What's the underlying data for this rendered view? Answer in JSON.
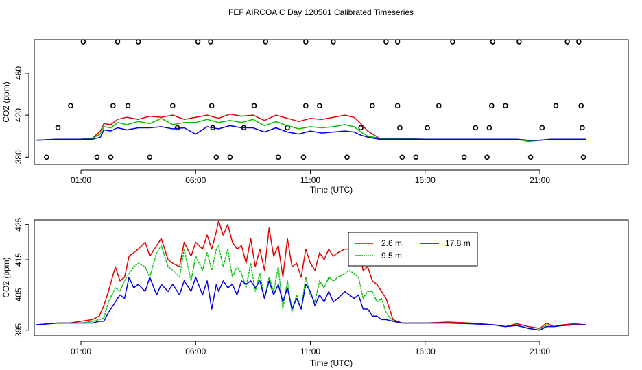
{
  "figure": {
    "title": "FEF AIRCOA C  Day 120501  Calibrated Timeseries"
  },
  "colors": {
    "red": "#e00000",
    "green": "#00c000",
    "blue": "#0000e0",
    "axis": "#000000"
  },
  "chart_data": [
    {
      "type": "scatter",
      "title": "",
      "xlabel": "Time (UTC)",
      "ylabel": "CO2 (ppm)",
      "x_tick_labels": [
        "01:00",
        "06:00",
        "11:00",
        "16:00",
        "21:00"
      ],
      "x_tick_hours": [
        1,
        6,
        11,
        16,
        21
      ],
      "y_ticks": [
        380,
        420,
        460
      ],
      "y_tick_labels": [
        "380",
        "420",
        "460"
      ],
      "xlim": [
        -1,
        24
      ],
      "ylim": [
        373,
        492
      ],
      "circle_points": [
        {
          "x": -0.5,
          "y": 380
        },
        {
          "x": 0.0,
          "y": 408
        },
        {
          "x": 0.55,
          "y": 429
        },
        {
          "x": 1.1,
          "y": 490
        },
        {
          "x": 1.7,
          "y": 380
        },
        {
          "x": 2.3,
          "y": 380
        },
        {
          "x": 2.4,
          "y": 429
        },
        {
          "x": 2.6,
          "y": 490
        },
        {
          "x": 3.05,
          "y": 429
        },
        {
          "x": 3.5,
          "y": 490
        },
        {
          "x": 4.0,
          "y": 380
        },
        {
          "x": 5.0,
          "y": 429
        },
        {
          "x": 5.2,
          "y": 408
        },
        {
          "x": 6.1,
          "y": 490
        },
        {
          "x": 6.65,
          "y": 490
        },
        {
          "x": 6.7,
          "y": 429
        },
        {
          "x": 6.75,
          "y": 408
        },
        {
          "x": 6.9,
          "y": 380
        },
        {
          "x": 7.5,
          "y": 380
        },
        {
          "x": 8.1,
          "y": 408
        },
        {
          "x": 8.55,
          "y": 429
        },
        {
          "x": 9.05,
          "y": 490
        },
        {
          "x": 9.6,
          "y": 380
        },
        {
          "x": 10.0,
          "y": 408
        },
        {
          "x": 10.7,
          "y": 380
        },
        {
          "x": 10.8,
          "y": 490
        },
        {
          "x": 10.8,
          "y": 429
        },
        {
          "x": 11.4,
          "y": 429
        },
        {
          "x": 12.0,
          "y": 490
        },
        {
          "x": 12.6,
          "y": 380
        },
        {
          "x": 13.2,
          "y": 408
        },
        {
          "x": 13.7,
          "y": 429
        },
        {
          "x": 14.3,
          "y": 490
        },
        {
          "x": 14.8,
          "y": 490
        },
        {
          "x": 14.8,
          "y": 429
        },
        {
          "x": 14.9,
          "y": 408
        },
        {
          "x": 15.0,
          "y": 380
        },
        {
          "x": 15.6,
          "y": 380
        },
        {
          "x": 16.1,
          "y": 408
        },
        {
          "x": 16.6,
          "y": 429
        },
        {
          "x": 17.2,
          "y": 490
        },
        {
          "x": 17.7,
          "y": 380
        },
        {
          "x": 18.2,
          "y": 408
        },
        {
          "x": 18.7,
          "y": 380
        },
        {
          "x": 18.8,
          "y": 408
        },
        {
          "x": 18.9,
          "y": 429
        },
        {
          "x": 18.95,
          "y": 490
        },
        {
          "x": 19.5,
          "y": 429
        },
        {
          "x": 20.1,
          "y": 490
        },
        {
          "x": 20.6,
          "y": 380
        },
        {
          "x": 21.1,
          "y": 408
        },
        {
          "x": 21.7,
          "y": 429
        },
        {
          "x": 22.2,
          "y": 490
        },
        {
          "x": 22.7,
          "y": 490
        },
        {
          "x": 22.8,
          "y": 429
        },
        {
          "x": 22.85,
          "y": 408
        },
        {
          "x": 22.9,
          "y": 380
        }
      ],
      "series": [
        {
          "name": "2.6 m",
          "color": "#e00000",
          "x": [
            -0.95,
            0,
            1,
            1.5,
            1.85,
            2.0,
            2.3,
            2.6,
            3.0,
            3.5,
            4.0,
            4.5,
            5.0,
            5.5,
            6.0,
            6.5,
            7.0,
            7.5,
            8.0,
            8.5,
            9.0,
            9.5,
            10.0,
            10.5,
            11.0,
            11.5,
            12.0,
            12.5,
            12.9,
            13.2,
            13.5,
            14,
            16,
            18,
            20,
            20.5,
            21,
            21.5,
            22,
            23.0
          ],
          "values": [
            396,
            397,
            397,
            398,
            405,
            412,
            411,
            416,
            418,
            416,
            419,
            418,
            420,
            416,
            418,
            420,
            417,
            421,
            419,
            420,
            415,
            420,
            417,
            414,
            417,
            416,
            418,
            420,
            418,
            412,
            405,
            398,
            397,
            397,
            397,
            395,
            396,
            397,
            397,
            397
          ]
        },
        {
          "name": "9.5 m",
          "color": "#00c000",
          "x": [
            -0.95,
            0,
            1,
            1.5,
            1.85,
            2.0,
            2.3,
            2.6,
            3.0,
            3.5,
            4.0,
            4.5,
            5.0,
            5.5,
            6.0,
            6.5,
            7.0,
            7.5,
            8.0,
            8.5,
            9.0,
            9.5,
            10.0,
            10.5,
            11.0,
            11.5,
            12.0,
            12.5,
            12.9,
            13.2,
            13.5,
            14,
            16,
            18,
            20,
            20.5,
            21,
            21.5,
            22,
            23.0
          ],
          "values": [
            396,
            397,
            397,
            398,
            402,
            409,
            408,
            413,
            411,
            414,
            412,
            417,
            411,
            413,
            413,
            416,
            413,
            415,
            413,
            416,
            410,
            414,
            410,
            407,
            409,
            408,
            409,
            411,
            409,
            404,
            400,
            398,
            397,
            397,
            397,
            395,
            396,
            397,
            397,
            397
          ]
        },
        {
          "name": "17.8 m",
          "color": "#0000e0",
          "x": [
            -0.95,
            0,
            1,
            1.5,
            1.85,
            2.0,
            2.3,
            2.6,
            3.0,
            3.5,
            4.0,
            4.5,
            5.0,
            5.5,
            6.0,
            6.5,
            7.0,
            7.5,
            8.0,
            8.5,
            9.0,
            9.5,
            10.0,
            10.5,
            11.0,
            11.5,
            12.0,
            12.5,
            12.9,
            13.2,
            13.5,
            14,
            16,
            18,
            20,
            20.5,
            21,
            21.5,
            22,
            23.0
          ],
          "values": [
            396,
            397,
            397,
            397,
            399,
            406,
            405,
            408,
            406,
            408,
            408,
            409,
            407,
            408,
            402,
            409,
            407,
            410,
            408,
            408,
            404,
            408,
            404,
            402,
            405,
            403,
            404,
            405,
            404,
            401,
            399,
            397,
            397,
            397,
            397,
            396,
            396,
            397,
            397,
            397
          ]
        }
      ]
    },
    {
      "type": "line",
      "title": "",
      "xlabel": "Time (UTC)",
      "ylabel": "CO2 (ppm)",
      "x_tick_labels": [
        "01:00",
        "06:00",
        "11:00",
        "16:00",
        "21:00"
      ],
      "x_tick_hours": [
        1,
        6,
        11,
        16,
        21
      ],
      "y_ticks": [
        395,
        405,
        415,
        425
      ],
      "y_tick_labels": [
        "395",
        "405",
        "415",
        "425"
      ],
      "xlim": [
        -1,
        24
      ],
      "ylim": [
        393.4,
        426.3
      ],
      "legend": {
        "position": "top-right",
        "labels": [
          "2.6 m",
          "9.5 m",
          "17.8 m"
        ]
      },
      "series": [
        {
          "name": "2.6 m",
          "color": "#e00000",
          "x": [
            -0.95,
            0,
            0.5,
            1,
            1.5,
            1.8,
            2.0,
            2.2,
            2.5,
            2.7,
            2.9,
            3.1,
            3.3,
            3.5,
            3.8,
            4.0,
            4.3,
            4.5,
            4.8,
            5.0,
            5.3,
            5.5,
            5.8,
            6.0,
            6.3,
            6.5,
            6.7,
            6.9,
            7.0,
            7.2,
            7.4,
            7.6,
            7.8,
            8.0,
            8.2,
            8.4,
            8.6,
            8.8,
            9.0,
            9.2,
            9.4,
            9.6,
            9.8,
            10.0,
            10.2,
            10.4,
            10.6,
            10.8,
            11.0,
            11.2,
            11.4,
            11.6,
            11.8,
            12.0,
            12.2,
            12.5,
            12.7,
            12.9,
            13.1,
            13.3,
            13.5,
            13.7,
            13.9,
            14.1,
            14.3,
            14.6,
            15,
            16,
            17,
            18,
            19,
            19.5,
            20,
            20.5,
            21,
            21.3,
            21.6,
            22,
            22.5,
            23.0
          ],
          "values": [
            396.5,
            397,
            397,
            397.5,
            398,
            399,
            402,
            406,
            413,
            409,
            410,
            416,
            417,
            418,
            420,
            416,
            419,
            421,
            415,
            414,
            413,
            420,
            416,
            420,
            418,
            422,
            418,
            423,
            426,
            422,
            425,
            420,
            418,
            419,
            414,
            421,
            413,
            418,
            412,
            424,
            416,
            419,
            410,
            421,
            413,
            414,
            410,
            418,
            414,
            412,
            417,
            415,
            418,
            416,
            417,
            418,
            418,
            415,
            419,
            412,
            413,
            409,
            408,
            406,
            404,
            398,
            397,
            397,
            397.3,
            397,
            396.5,
            396,
            396.8,
            396,
            395.5,
            397,
            396,
            396.5,
            396.8,
            396.5
          ]
        },
        {
          "name": "9.5 m",
          "color": "#00c000",
          "x": [
            -0.95,
            0,
            0.5,
            1,
            1.5,
            1.8,
            2.0,
            2.2,
            2.5,
            2.7,
            2.9,
            3.1,
            3.3,
            3.5,
            3.8,
            4.0,
            4.3,
            4.5,
            4.8,
            5.0,
            5.3,
            5.5,
            5.8,
            6.0,
            6.3,
            6.5,
            6.7,
            6.9,
            7.0,
            7.2,
            7.4,
            7.6,
            7.8,
            8.0,
            8.2,
            8.4,
            8.6,
            8.8,
            9.0,
            9.2,
            9.4,
            9.6,
            9.8,
            10.0,
            10.2,
            10.4,
            10.6,
            10.8,
            11.0,
            11.2,
            11.4,
            11.6,
            11.8,
            12.0,
            12.2,
            12.5,
            12.7,
            12.9,
            13.1,
            13.3,
            13.5,
            13.7,
            13.9,
            14.1,
            14.3,
            14.6,
            15,
            16,
            17,
            18,
            19,
            19.5,
            20,
            20.5,
            21,
            21.3,
            21.6,
            22,
            22.5,
            23.0
          ],
          "values": [
            396.5,
            397,
            397,
            397,
            397.5,
            398,
            398.5,
            403,
            407,
            406,
            409,
            411,
            413,
            414,
            413,
            410,
            417,
            419,
            413,
            412,
            410,
            418,
            409,
            416,
            412,
            417,
            412,
            418,
            419,
            413,
            418,
            410,
            413,
            411,
            407,
            414,
            406,
            411,
            404,
            410,
            406,
            413,
            401,
            409,
            400,
            405,
            401,
            410,
            405,
            403,
            409,
            407,
            410,
            409,
            410,
            411,
            412,
            411,
            410,
            404,
            406,
            406,
            403,
            404,
            400,
            397.5,
            397,
            397,
            397,
            396.8,
            396.5,
            396,
            396.5,
            395.5,
            395,
            396.5,
            396,
            396.3,
            396.5,
            396.5
          ]
        },
        {
          "name": "17.8 m",
          "color": "#0000e0",
          "x": [
            -0.95,
            0,
            0.5,
            1,
            1.5,
            1.8,
            2.0,
            2.2,
            2.5,
            2.7,
            2.9,
            3.1,
            3.3,
            3.5,
            3.8,
            4.0,
            4.3,
            4.5,
            4.8,
            5.0,
            5.3,
            5.5,
            5.8,
            6.0,
            6.3,
            6.5,
            6.7,
            6.9,
            7.0,
            7.2,
            7.4,
            7.6,
            7.8,
            8.0,
            8.2,
            8.4,
            8.6,
            8.8,
            9.0,
            9.2,
            9.4,
            9.6,
            9.8,
            10.0,
            10.2,
            10.4,
            10.6,
            10.8,
            11.0,
            11.2,
            11.4,
            11.6,
            11.8,
            12.0,
            12.2,
            12.5,
            12.7,
            12.9,
            13.1,
            13.3,
            13.5,
            13.7,
            13.9,
            14.1,
            14.3,
            14.6,
            15,
            16,
            17,
            18,
            19,
            19.5,
            20,
            20.5,
            21,
            21.3,
            21.6,
            22,
            22.5,
            23.0
          ],
          "values": [
            396.5,
            397,
            397,
            397,
            397,
            397.5,
            397.5,
            400,
            403,
            405,
            404,
            410,
            407,
            408,
            406,
            410,
            405,
            408,
            406,
            408,
            405,
            409,
            406,
            410,
            405,
            409,
            401,
            408,
            406,
            409,
            407,
            408,
            405,
            409,
            408,
            409,
            407,
            409,
            404,
            409,
            405,
            408,
            403,
            407,
            401,
            404,
            401,
            408,
            406,
            402,
            405,
            403,
            406,
            403,
            404,
            406,
            405,
            404,
            405,
            401,
            401,
            399,
            399,
            398,
            398,
            397.5,
            397,
            397,
            397,
            396.8,
            396.5,
            396,
            396.3,
            395.5,
            395,
            396,
            396,
            396.3,
            396.5,
            396.5
          ]
        }
      ]
    }
  ]
}
